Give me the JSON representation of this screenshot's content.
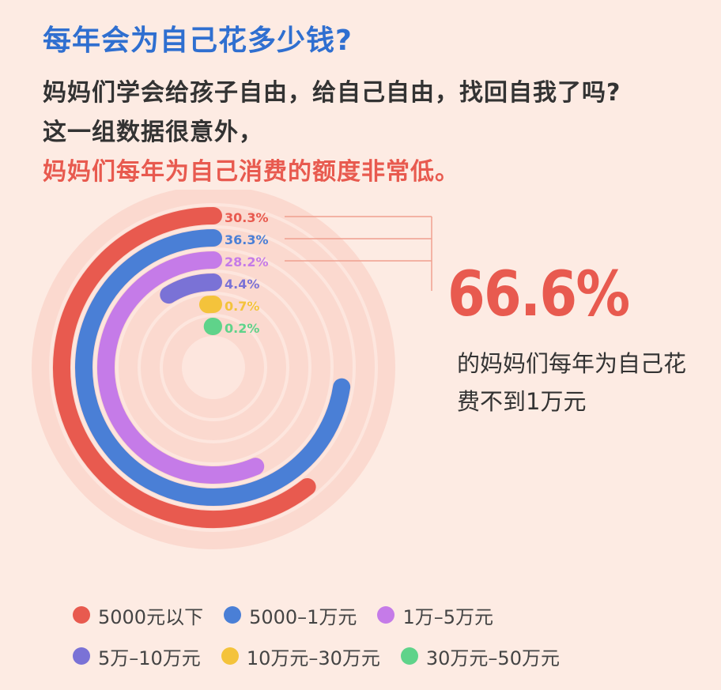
{
  "header": {
    "title": "每年会为自己花多少钱?",
    "line1": "妈妈们学会给孩子自由，给自己自由，找回自我了吗?",
    "line2": "这一组数据很意外，",
    "line3": "妈妈们每年为自己消费的额度非常低。"
  },
  "highlight": {
    "value": "66.6%",
    "caption": "的妈妈们每年为自己花费不到1万元"
  },
  "chart_data": {
    "type": "radial-bar",
    "categories": [
      "5000元以下",
      "5000–1万元",
      "1万–5万元",
      "5万–10万元",
      "10万元–30万元",
      "30万元–50万元"
    ],
    "values": [
      30.3,
      36.3,
      28.2,
      4.4,
      0.7,
      0.2
    ],
    "value_labels": [
      "30.3%",
      "36.3%",
      "28.2%",
      "4.4%",
      "0.7%",
      "0.2%"
    ],
    "colors": [
      "#e85a4f",
      "#4a7fd6",
      "#c57be8",
      "#7a72d6",
      "#f4c33b",
      "#5fd38a"
    ],
    "max": 50,
    "legend_position": "bottom"
  },
  "legend": [
    [
      "5000元以下",
      "5000–1万元",
      "1万–5万元"
    ],
    [
      "5万–10万元",
      "10万元–30万元",
      "30万元–50万元"
    ]
  ]
}
